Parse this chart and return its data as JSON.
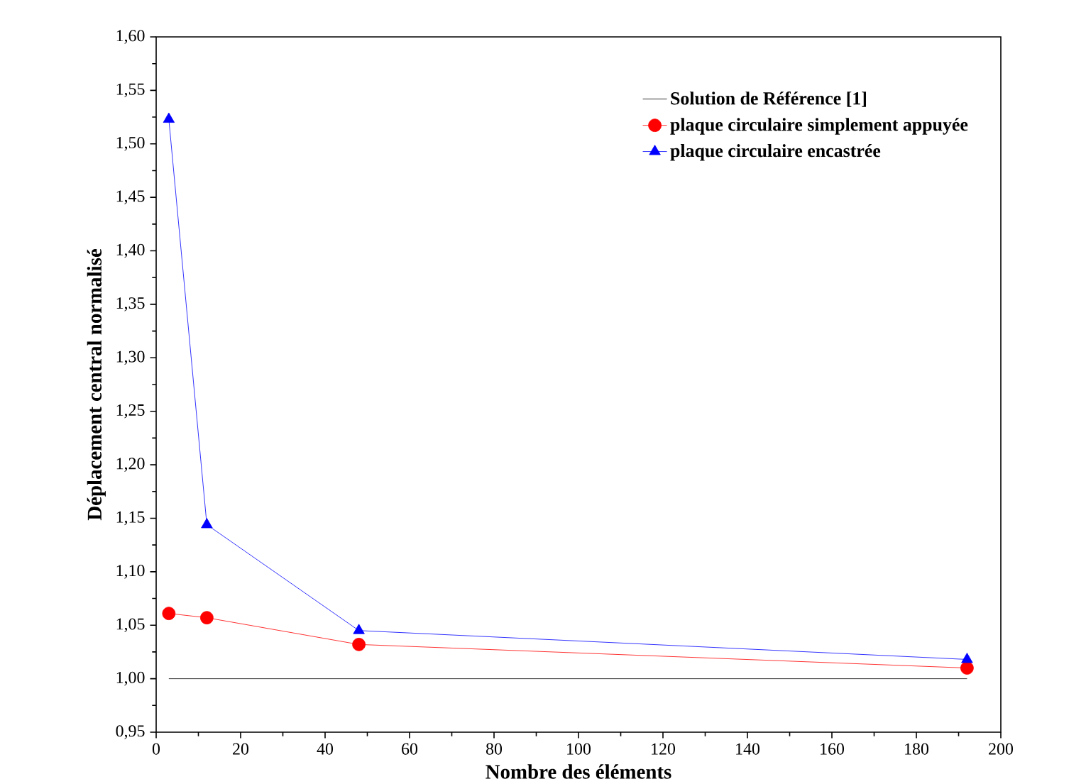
{
  "chart_data": {
    "type": "line",
    "xlabel": "Nombre des éléments",
    "ylabel": "Déplacement central normalisé",
    "xlim": [
      0,
      200
    ],
    "xticks": [
      0,
      20,
      40,
      60,
      80,
      100,
      120,
      140,
      160,
      180,
      200
    ],
    "ylim": [
      0.95,
      1.6
    ],
    "yticks": [
      {
        "value": 0.95,
        "label": "0,95"
      },
      {
        "value": 1.0,
        "label": "1,00"
      },
      {
        "value": 1.05,
        "label": "1,05"
      },
      {
        "value": 1.1,
        "label": "1,10"
      },
      {
        "value": 1.15,
        "label": "1,15"
      },
      {
        "value": 1.2,
        "label": "1,20"
      },
      {
        "value": 1.25,
        "label": "1,25"
      },
      {
        "value": 1.3,
        "label": "1,30"
      },
      {
        "value": 1.35,
        "label": "1,35"
      },
      {
        "value": 1.4,
        "label": "1,40"
      },
      {
        "value": 1.45,
        "label": "1,45"
      },
      {
        "value": 1.5,
        "label": "1,50"
      },
      {
        "value": 1.55,
        "label": "1,55"
      },
      {
        "value": 1.6,
        "label": "1,60"
      }
    ],
    "legend": "top right",
    "grid": false,
    "series": [
      {
        "name": "Solution de Référence [1]",
        "color": "#000000",
        "marker": "none",
        "x": [
          3,
          192
        ],
        "values": [
          1.0,
          1.0
        ]
      },
      {
        "name": "plaque circulaire simplement appuyée",
        "color": "#ff0000",
        "marker": "circle",
        "x": [
          3,
          12,
          48,
          192
        ],
        "values": [
          1.061,
          1.057,
          1.032,
          1.01
        ]
      },
      {
        "name": "plaque circulaire encastrée",
        "color": "#0000ff",
        "marker": "triangle",
        "x": [
          3,
          12,
          48,
          192
        ],
        "values": [
          1.523,
          1.144,
          1.045,
          1.018
        ]
      }
    ]
  }
}
